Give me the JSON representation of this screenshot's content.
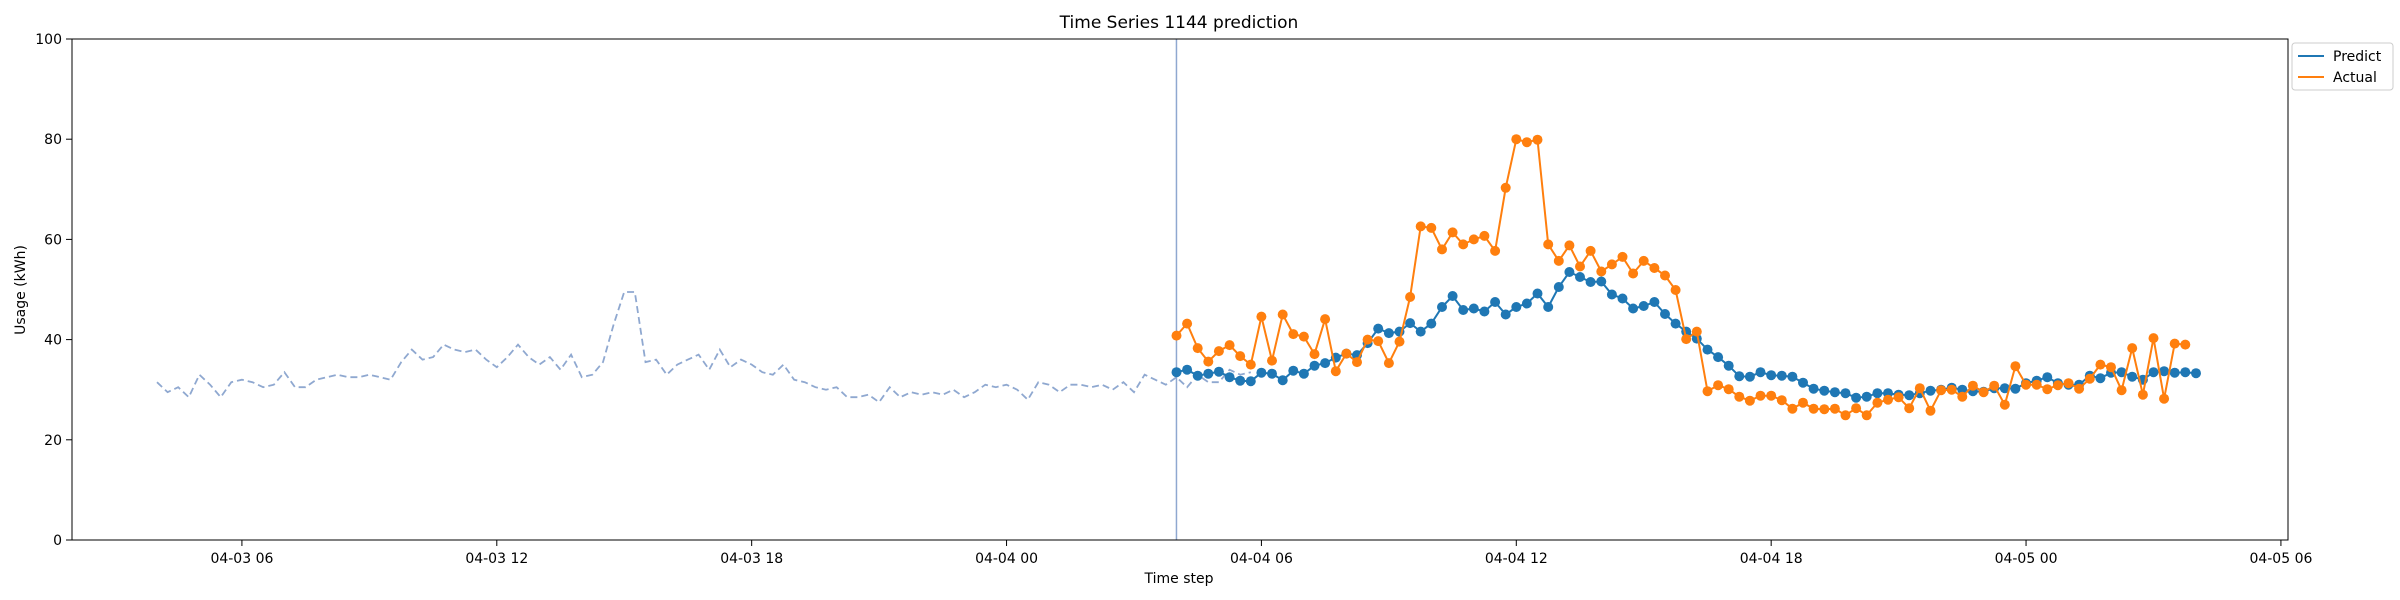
{
  "chart_data": {
    "type": "line",
    "title": "Time Series 1144 prediction",
    "xlabel": "Time step",
    "ylabel": "Usage (kWh)",
    "ylim": [
      0,
      100
    ],
    "yticks": [
      "0",
      "20",
      "40",
      "60",
      "80",
      "100"
    ],
    "xlim": [
      "04-03 02:00",
      "04-05 06:10"
    ],
    "xticks": [
      "04-03 06",
      "04-03 12",
      "04-03 18",
      "04-04 00",
      "04-04 06",
      "04-04 12",
      "04-04 18",
      "04-05 00",
      "04-05 06"
    ],
    "grid": false,
    "legend": "top-right, outside plot",
    "split_time": "04-04 04:00",
    "colors": {
      "predict": "#1f77b4",
      "actual": "#ff7f0e",
      "history": "#8fa8d0",
      "split": "#8fa8d0"
    },
    "series": [
      {
        "name": "",
        "role": "history",
        "style": "dashed",
        "start": "04-03 04:00",
        "step_minutes": 15,
        "values": [
          31.5,
          29.5,
          30.5,
          28.5,
          33,
          31,
          28.5,
          31.5,
          32,
          31.5,
          30.5,
          31,
          33.5,
          30.5,
          30.5,
          32,
          32.5,
          33,
          32.5,
          32.5,
          33,
          32.5,
          32,
          35.5,
          38,
          36,
          36.5,
          39,
          38,
          37.5,
          38,
          36,
          34.5,
          36.5,
          39,
          36.5,
          35,
          36.5,
          34,
          37,
          32.5,
          33,
          35.5,
          43,
          49.5,
          49.5,
          35.5,
          36,
          33,
          35,
          36,
          37,
          34,
          38,
          34.5,
          36,
          35,
          33.5,
          33,
          35,
          32,
          31.5,
          30.5,
          30,
          30.5,
          28.5,
          28.5,
          29,
          27.5,
          30.5,
          28.5,
          29.5,
          29,
          29.5,
          29,
          30,
          28.5,
          29.5,
          31,
          30.5,
          31,
          30,
          28,
          31.5,
          31,
          29.5,
          31,
          31,
          30.5,
          31,
          30,
          31.5,
          29.5,
          33,
          32,
          31,
          32.5,
          30.5,
          33,
          31.5,
          31.5,
          34,
          33,
          33.5
        ]
      },
      {
        "name": "Predict",
        "role": "predict",
        "style": "solid-markers",
        "start": "04-04 04:00",
        "step_minutes": 15,
        "values": [
          33.5,
          34,
          32.8,
          33.2,
          33.6,
          32.5,
          31.8,
          31.7,
          33.4,
          33.2,
          31.9,
          33.8,
          33.2,
          34.8,
          35.3,
          36.4,
          37.2,
          36.9,
          39.3,
          42.2,
          41.3,
          41.6,
          43.3,
          41.6,
          43.2,
          46.5,
          48.7,
          45.9,
          46.2,
          45.6,
          47.5,
          45,
          46.5,
          47.2,
          49.2,
          46.5,
          50.5,
          53.5,
          52.5,
          51.5,
          51.6,
          49,
          48.2,
          46.2,
          46.7,
          47.5,
          45.1,
          43.2,
          41.6,
          40.2,
          38,
          36.5,
          34.8,
          32.7,
          32.6,
          33.5,
          32.9,
          32.8,
          32.6,
          31.4,
          30.2,
          29.8,
          29.5,
          29.3,
          28.4,
          28.6,
          29.3,
          29.3,
          29,
          28.9,
          29.3,
          29.8,
          30,
          30.4,
          30,
          29.7,
          29.6,
          30.3,
          30.3,
          30.2,
          31.3,
          31.8,
          32.5,
          31.3,
          31,
          31,
          32.8,
          32.3,
          33.4,
          33.5,
          32.6,
          32,
          33.5,
          33.7,
          33.4,
          33.5,
          33.3
        ]
      },
      {
        "name": "Actual",
        "role": "actual",
        "style": "solid-markers",
        "start": "04-04 04:00",
        "step_minutes": 15,
        "values": [
          40.8,
          43.2,
          38.3,
          35.6,
          37.7,
          38.9,
          36.7,
          35,
          44.6,
          35.8,
          45,
          41.1,
          40.6,
          37.1,
          44.1,
          33.7,
          37.2,
          35.5,
          40,
          39.7,
          35.3,
          39.6,
          48.5,
          62.6,
          62.3,
          58,
          61.4,
          59,
          60,
          60.7,
          57.7,
          70.3,
          80,
          79.4,
          79.9,
          59,
          55.7,
          58.8,
          54.6,
          57.7,
          53.6,
          55,
          56.5,
          53.2,
          55.7,
          54.3,
          52.8,
          49.9,
          40.1,
          41.6,
          29.7,
          30.9,
          30.1,
          28.6,
          27.8,
          28.8,
          28.8,
          27.9,
          26.2,
          27.4,
          26.2,
          26.1,
          26.2,
          24.9,
          26.3,
          24.9,
          27.4,
          28,
          28.5,
          26.3,
          30.3,
          25.8,
          29.9,
          30,
          28.6,
          30.8,
          29.5,
          30.8,
          27,
          34.7,
          31,
          31,
          30.1,
          30.9,
          31.3,
          30.2,
          32.2,
          35,
          34.5,
          29.9,
          38.3,
          29,
          40.3,
          28.2,
          39.2,
          39
        ]
      }
    ]
  }
}
